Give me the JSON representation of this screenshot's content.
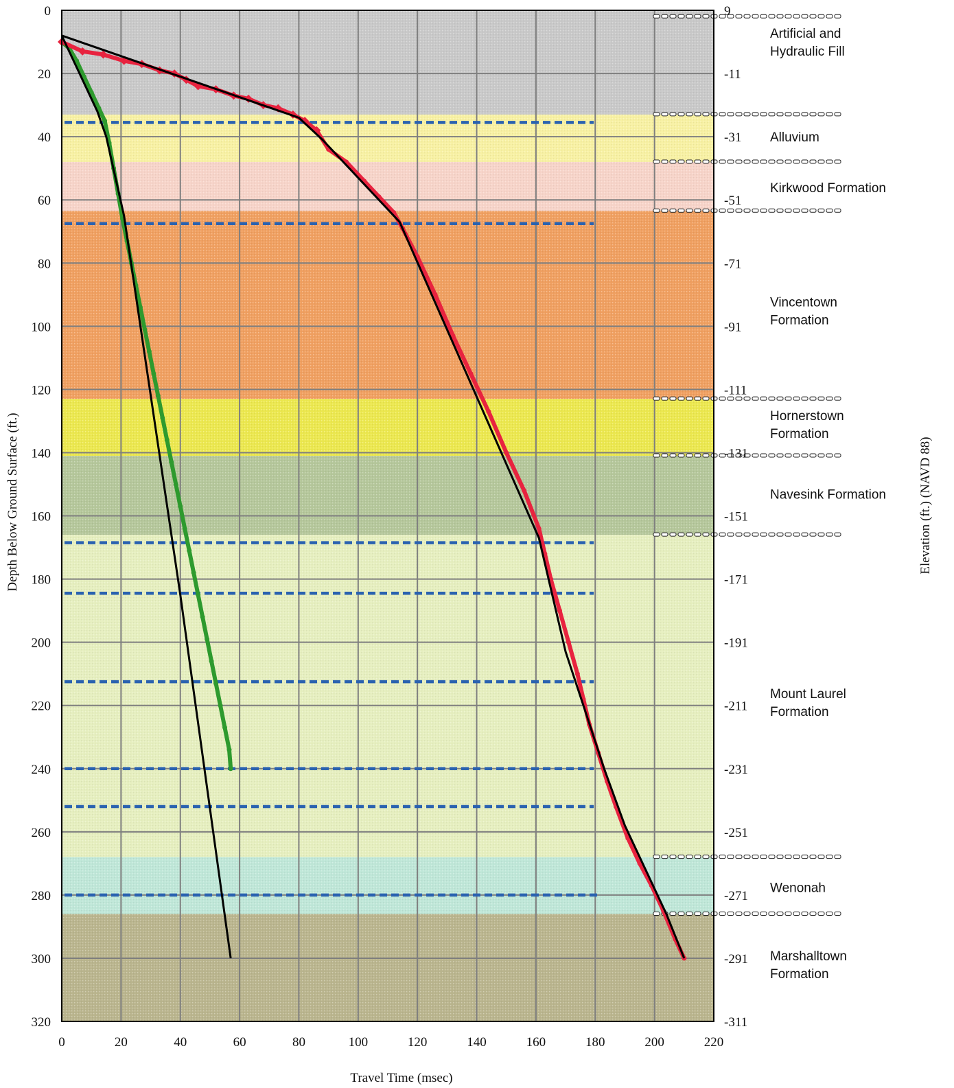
{
  "chart_data": {
    "type": "line",
    "xlabel": "Travel Time (msec)",
    "ylabel": "Depth Below Ground Surface (ft.)",
    "y2label": "Elevation (ft.) (NAVD 88)",
    "xlim": [
      0,
      220
    ],
    "ylim": [
      320,
      0
    ],
    "x_ticks": [
      0,
      20,
      40,
      60,
      80,
      100,
      120,
      140,
      160,
      180,
      200,
      220
    ],
    "y_ticks": [
      0,
      20,
      40,
      60,
      80,
      100,
      120,
      140,
      160,
      180,
      200,
      220,
      240,
      260,
      280,
      300,
      320
    ],
    "y2_ticks": [
      "9",
      "-11",
      "-31",
      "-51",
      "-71",
      "-91",
      "-111",
      "-131",
      "-151",
      "-171",
      "-191",
      "-211",
      "-231",
      "-251",
      "-271",
      "-291",
      "-311"
    ],
    "grid": true,
    "formations": [
      {
        "name_lines": [
          "Artificial and",
          "Hydraulic Fill"
        ],
        "top": 0,
        "bottom": 33,
        "color": "#c9c9c9"
      },
      {
        "name_lines": [
          "Alluvium"
        ],
        "top": 33,
        "bottom": 48,
        "color": "#f8f1a3"
      },
      {
        "name_lines": [
          "Kirkwood Formation"
        ],
        "top": 48,
        "bottom": 63.5,
        "color": "#f7d4c9"
      },
      {
        "name_lines": [
          "Vincentown",
          "Formation"
        ],
        "top": 63.5,
        "bottom": 123,
        "color": "#f0a061"
      },
      {
        "name_lines": [
          "Hornerstown",
          "Formation"
        ],
        "top": 123,
        "bottom": 141,
        "color": "#ece84f"
      },
      {
        "name_lines": [
          "Navesink Formation"
        ],
        "top": 141,
        "bottom": 166,
        "color": "#b5c79b"
      },
      {
        "name_lines": [
          "Mount Laurel",
          "Formation"
        ],
        "top": 166,
        "bottom": 268,
        "color": "#e6efbf"
      },
      {
        "name_lines": [
          "Wenonah"
        ],
        "top": 268,
        "bottom": 286,
        "color": "#bfe7d8"
      },
      {
        "name_lines": [
          "Marshalltown",
          "Formation"
        ],
        "top": 286,
        "bottom": 320,
        "color": "#bab58e"
      }
    ],
    "blue_dashed_depths": [
      35.5,
      67.5,
      168.5,
      184.5,
      212.5,
      240,
      252,
      280
    ],
    "series": [
      {
        "color": "#2e9a2e",
        "values": [
          [
            0,
            10
          ],
          [
            2.5,
            12
          ],
          [
            5,
            16
          ],
          [
            7.5,
            21
          ],
          [
            10,
            26
          ],
          [
            12.5,
            31
          ],
          [
            14.5,
            35
          ],
          [
            16,
            42
          ],
          [
            17.5,
            50
          ],
          [
            19,
            58
          ],
          [
            20.5,
            66
          ],
          [
            22,
            73
          ],
          [
            23.5,
            80
          ],
          [
            25,
            87
          ],
          [
            26.5,
            94
          ],
          [
            28,
            101
          ],
          [
            29.5,
            108
          ],
          [
            31,
            115
          ],
          [
            32.5,
            122
          ],
          [
            34,
            129
          ],
          [
            35.5,
            136
          ],
          [
            37,
            143
          ],
          [
            38.5,
            150
          ],
          [
            40,
            157
          ],
          [
            41.5,
            164
          ],
          [
            43,
            171
          ],
          [
            44.5,
            178
          ],
          [
            46,
            185
          ],
          [
            47.5,
            192
          ],
          [
            49,
            199
          ],
          [
            50.5,
            206
          ],
          [
            52,
            213
          ],
          [
            53.5,
            220
          ],
          [
            55,
            227
          ],
          [
            56.5,
            234
          ],
          [
            57,
            240
          ]
        ]
      },
      {
        "color": "#e8233f",
        "values": [
          [
            0,
            10
          ],
          [
            7,
            13
          ],
          [
            14,
            14
          ],
          [
            21,
            16
          ],
          [
            27,
            17
          ],
          [
            33,
            19
          ],
          [
            38,
            20
          ],
          [
            42,
            22
          ],
          [
            46,
            24
          ],
          [
            52,
            25
          ],
          [
            58,
            27
          ],
          [
            63,
            28
          ],
          [
            68,
            30
          ],
          [
            73,
            31
          ],
          [
            78,
            33
          ],
          [
            82,
            35
          ],
          [
            86,
            38
          ],
          [
            90,
            44
          ],
          [
            96,
            48
          ],
          [
            102,
            54
          ],
          [
            107,
            59
          ],
          [
            112,
            64
          ],
          [
            115,
            69
          ],
          [
            120,
            78
          ],
          [
            126,
            90
          ],
          [
            132,
            103
          ],
          [
            138,
            115
          ],
          [
            144,
            127
          ],
          [
            150,
            140
          ],
          [
            156,
            152
          ],
          [
            161,
            164
          ],
          [
            163,
            172
          ],
          [
            165,
            180
          ],
          [
            168,
            190
          ],
          [
            171,
            200
          ],
          [
            174,
            210
          ],
          [
            176,
            218
          ],
          [
            178,
            226
          ],
          [
            181,
            235
          ],
          [
            184,
            244
          ],
          [
            187,
            252
          ],
          [
            191,
            262
          ],
          [
            195,
            270
          ],
          [
            199,
            277
          ],
          [
            203,
            285
          ],
          [
            207,
            294
          ],
          [
            210,
            300
          ]
        ]
      }
    ],
    "fit_lines": [
      [
        [
          0,
          8
        ],
        [
          12,
          32
        ],
        [
          15,
          40
        ],
        [
          21,
          65
        ],
        [
          40,
          185
        ],
        [
          57,
          300
        ]
      ],
      [
        [
          0,
          8
        ],
        [
          80,
          34
        ],
        [
          88,
          41
        ],
        [
          114,
          67
        ],
        [
          161,
          167
        ],
        [
          170,
          203
        ],
        [
          176,
          220
        ],
        [
          183,
          240
        ],
        [
          190,
          258
        ],
        [
          204,
          286
        ],
        [
          210,
          300
        ]
      ]
    ]
  }
}
